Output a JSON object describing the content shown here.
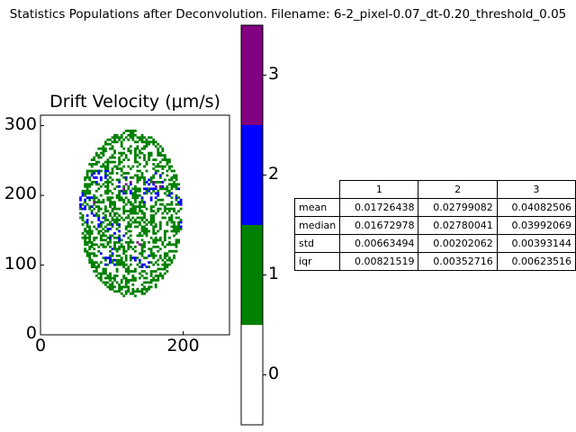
{
  "figure": {
    "suptitle": "Statistics Populations after Deconvolution. Filename: 6-2_pixel-0.07_dt-0.20_threshold_0.05"
  },
  "chart_data": [
    {
      "type": "heatmap",
      "title": "Drift Velocity (μm/s)",
      "xlabel": "",
      "ylabel": "",
      "xlim": [
        0,
        265
      ],
      "ylim": [
        0,
        315
      ],
      "x_ticks": [
        "0",
        "200"
      ],
      "y_ticks": [
        "0",
        "100",
        "200",
        "300"
      ],
      "grid": false,
      "populations": [
        0,
        1,
        2,
        3
      ],
      "colormap": [
        "#ffffff",
        "#008000",
        "#0000ff",
        "#800080"
      ],
      "colorbar": {
        "range": [
          -0.5,
          3.5
        ],
        "ticks": [
          "0",
          "1",
          "2",
          "3"
        ]
      }
    },
    {
      "type": "table",
      "columns": [
        "1",
        "2",
        "3"
      ],
      "rows": [
        {
          "label": "mean",
          "values": [
            "0.01726438",
            "0.02799082",
            "0.04082506"
          ]
        },
        {
          "label": "median",
          "values": [
            "0.01672978",
            "0.02780041",
            "0.03992069"
          ]
        },
        {
          "label": "std",
          "values": [
            "0.00663494",
            "0.00202062",
            "0.00393144"
          ]
        },
        {
          "label": "iqr",
          "values": [
            "0.00821519",
            "0.00352716",
            "0.00623516"
          ]
        }
      ]
    }
  ]
}
